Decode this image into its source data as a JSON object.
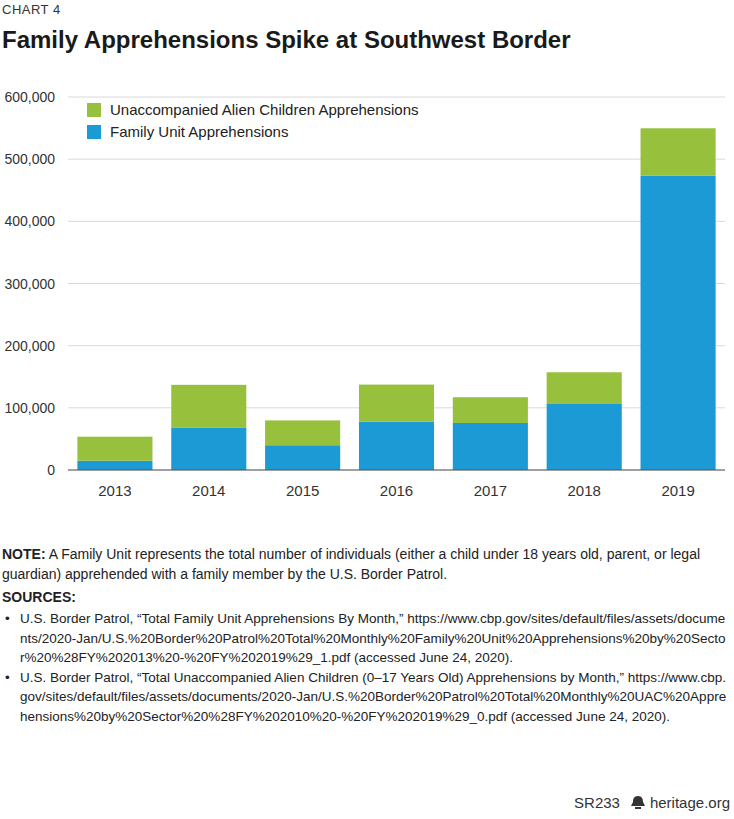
{
  "chart_data": {
    "type": "bar",
    "chart_number": "CHART 4",
    "title": "Family Apprehensions Spike at Southwest Border",
    "categories": [
      "2013",
      "2014",
      "2015",
      "2016",
      "2017",
      "2018",
      "2019"
    ],
    "series": [
      {
        "name": "Family Unit Apprehensions",
        "color": "#1b9ad6",
        "values": [
          14855,
          68445,
          39838,
          77674,
          75622,
          107212,
          473682
        ]
      },
      {
        "name": "Unaccompanied Alien Children Apprehensions",
        "color": "#97c13c",
        "values": [
          38759,
          68541,
          39970,
          59692,
          41435,
          50036,
          76020
        ]
      }
    ],
    "stacked": true,
    "ylim": [
      0,
      600000
    ],
    "yticks": [
      0,
      {
        "value": 100000,
        "label": "100,000"
      },
      {
        "value": 200000,
        "label": "200,000"
      },
      {
        "value": 300000,
        "label": "300,000"
      },
      {
        "value": 400000,
        "label": "400,000"
      },
      {
        "value": 500000,
        "label": "500,000"
      },
      {
        "value": 600000,
        "label": "600,000"
      }
    ],
    "grid": true,
    "legend": "upper left",
    "note_label": "NOTE:",
    "note": "A Family Unit represents the total number of individuals (either a child under 18 years old, parent, or legal guardian) apprehended with a family member by the U.S. Border Patrol.",
    "sources_label": "SOURCES:",
    "sources": [
      "U.S. Border Patrol, “Total Family Unit Apprehensions By Month,” https://www.cbp.gov/sites/default/files/assets/documents/2020-Jan/U.S.%20Border%20Patrol%20Total%20Monthly%20Family%20Unit%20Apprehensions%20by%20Sector%20%28FY%202013%20-%20FY%202019%29_1.pdf (accessed June 24, 2020).",
      "U.S. Border Patrol, “Total Unaccompanied Alien Children (0–17 Years Old) Apprehensions by Month,” https://www.cbp.gov/sites/default/files/assets/documents/2020-Jan/U.S.%20Border%20Patrol%20Total%20Monthly%20UAC%20Apprehensions%20by%20Sector%20%28FY%202010%20-%20FY%202019%29_0.pdf (accessed June 24, 2020)."
    ],
    "footer_code": "SR233",
    "footer_site": "heritage.org"
  }
}
